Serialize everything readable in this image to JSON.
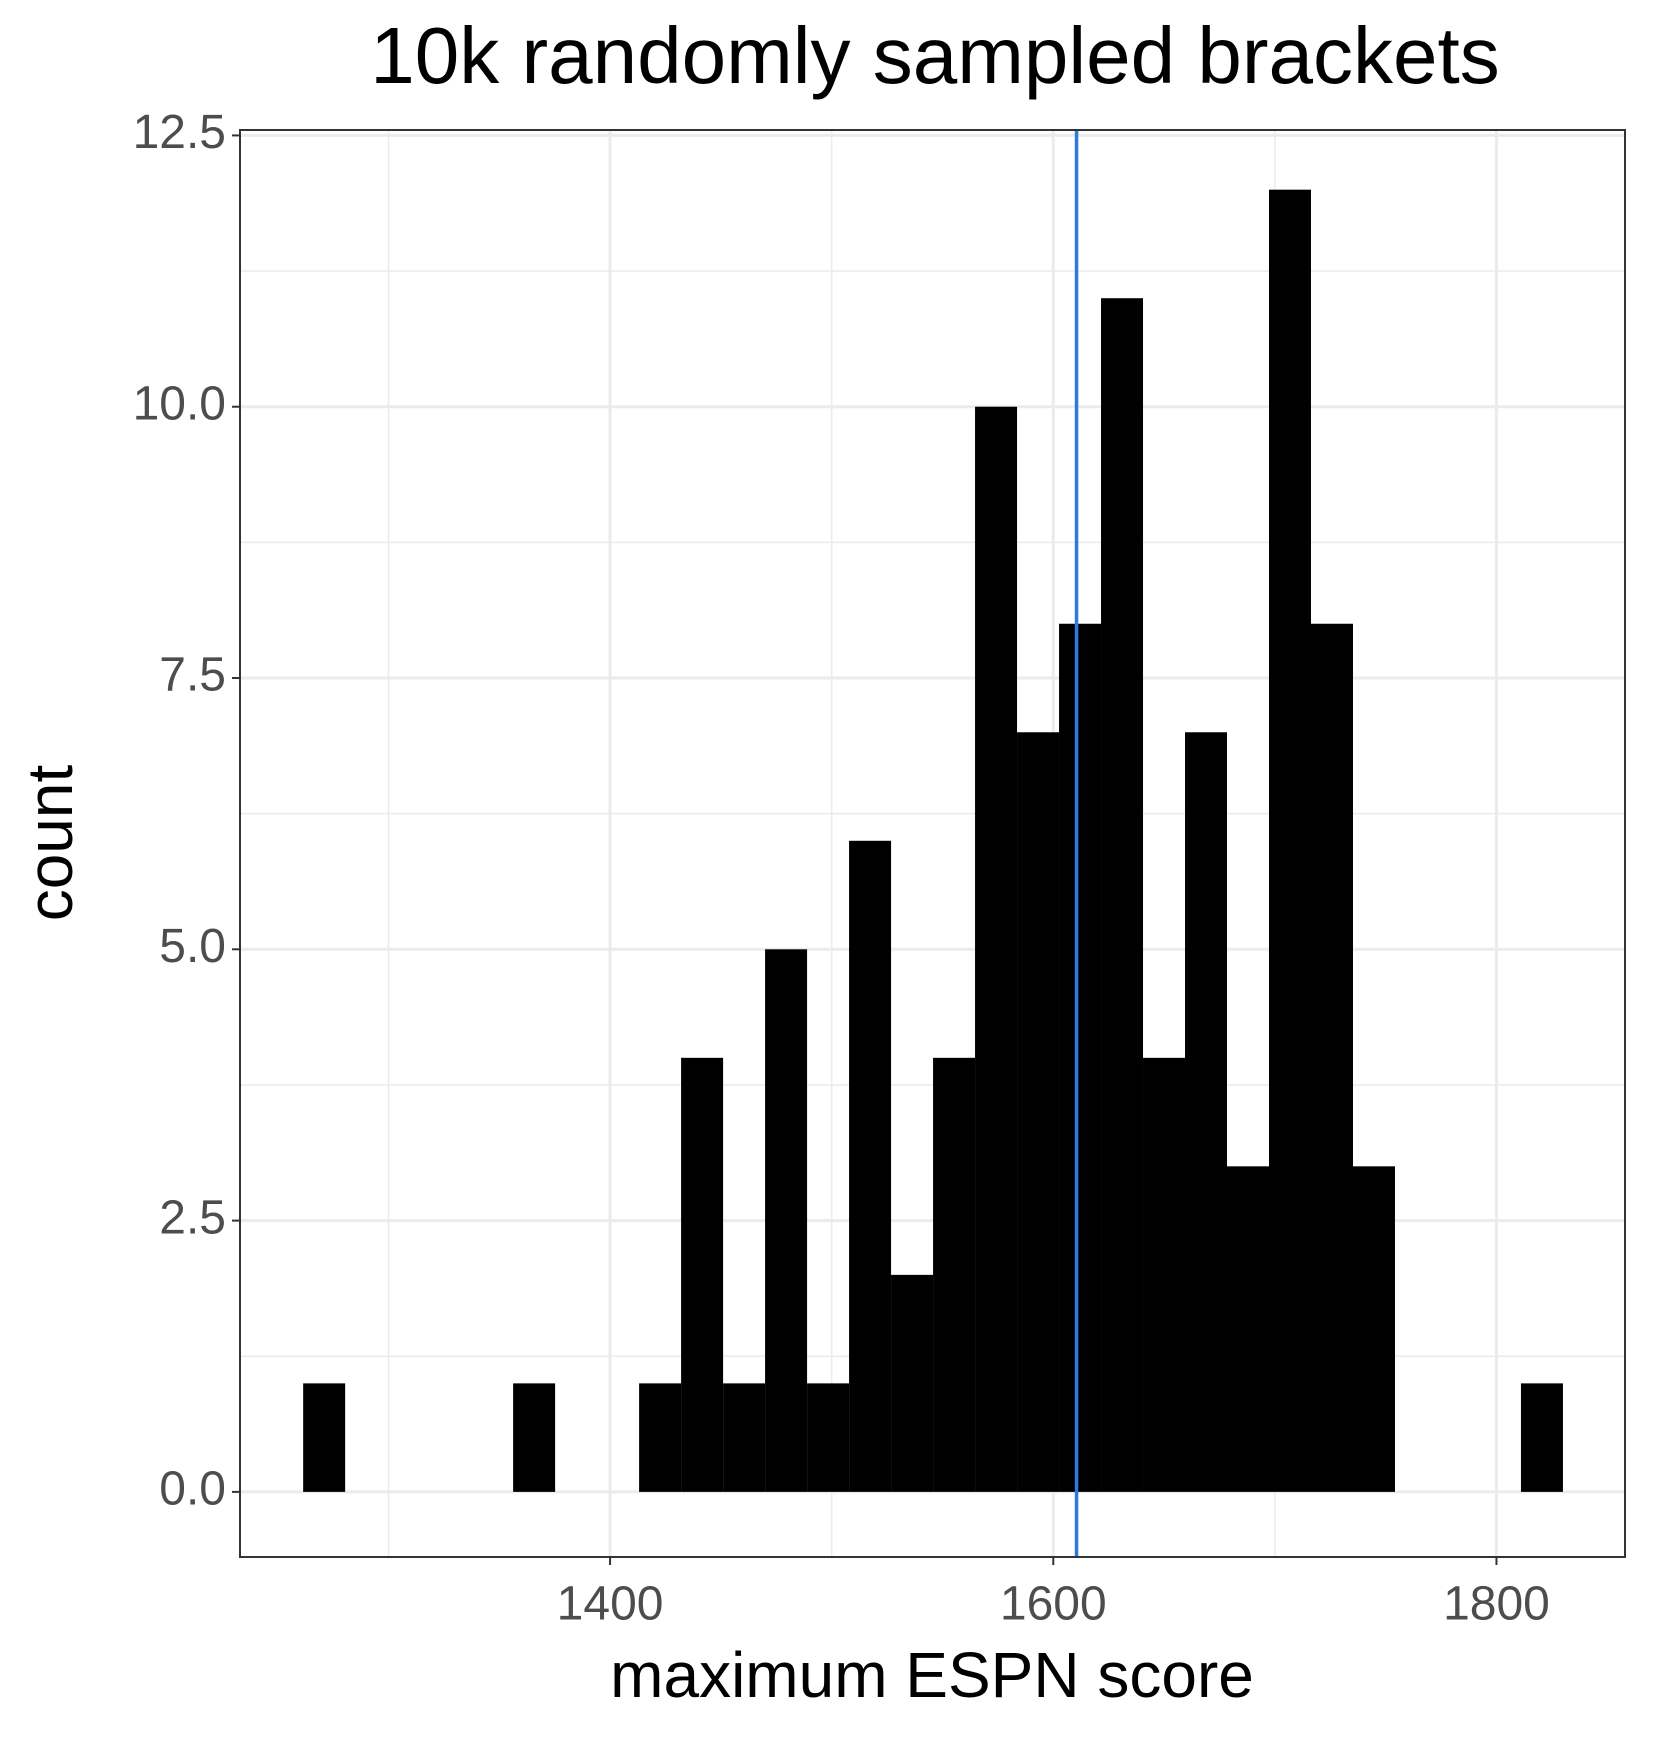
{
  "chart_data": {
    "type": "histogram",
    "title": "10k randomly sampled brackets",
    "x_label": "maximum ESPN score",
    "y_label": "count",
    "bins": [
      1261.5,
      1280.45,
      1299.4,
      1318.35,
      1337.3,
      1356.25,
      1375.2,
      1394.15,
      1413.1,
      1432.05,
      1451,
      1469.95,
      1488.9,
      1507.85,
      1526.8,
      1545.75,
      1564.7,
      1583.65,
      1602.6,
      1621.55,
      1640.5,
      1659.45,
      1678.4,
      1697.35,
      1716.3,
      1735.25,
      1754.2,
      1773.15,
      1792.1,
      1811.05,
      1830
    ],
    "values": [
      1,
      0,
      0,
      0,
      0,
      1,
      0,
      0,
      1,
      4,
      1,
      5,
      1,
      6,
      2,
      4,
      10,
      7,
      8,
      11,
      4,
      7,
      3,
      12,
      8,
      3,
      0,
      0,
      0,
      1
    ],
    "color": "#000000",
    "vline": {
      "value": 1610.5,
      "color": "#2a7ae2"
    },
    "xlim": [
      1233,
      1858
    ],
    "xticks": [
      1400,
      1600,
      1800
    ],
    "ylim": [
      -0.6,
      12.55
    ],
    "yticks": [
      {
        "value": 0,
        "label": "0.0"
      },
      2.5,
      {
        "value": 5,
        "label": "5.0"
      },
      7.5,
      {
        "value": 10,
        "label": "10.0"
      },
      12.5
    ],
    "grid": true
  }
}
